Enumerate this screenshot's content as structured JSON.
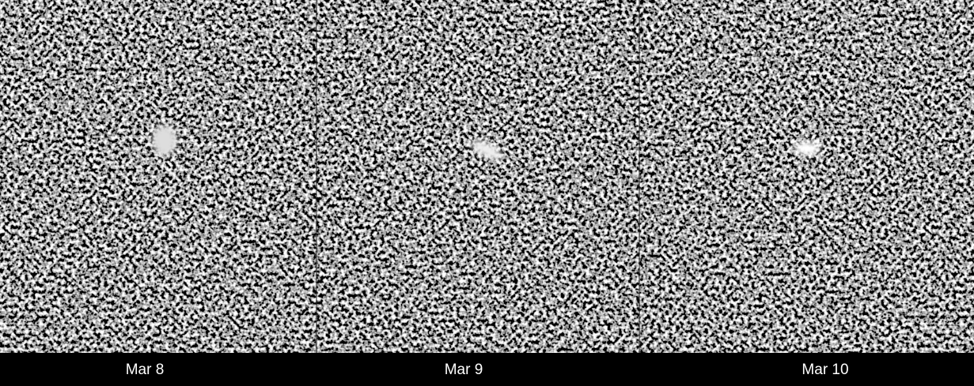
{
  "panels": [
    {
      "label": "Mar 8"
    },
    {
      "label": "Mar 9"
    },
    {
      "label": "Mar 10"
    }
  ]
}
